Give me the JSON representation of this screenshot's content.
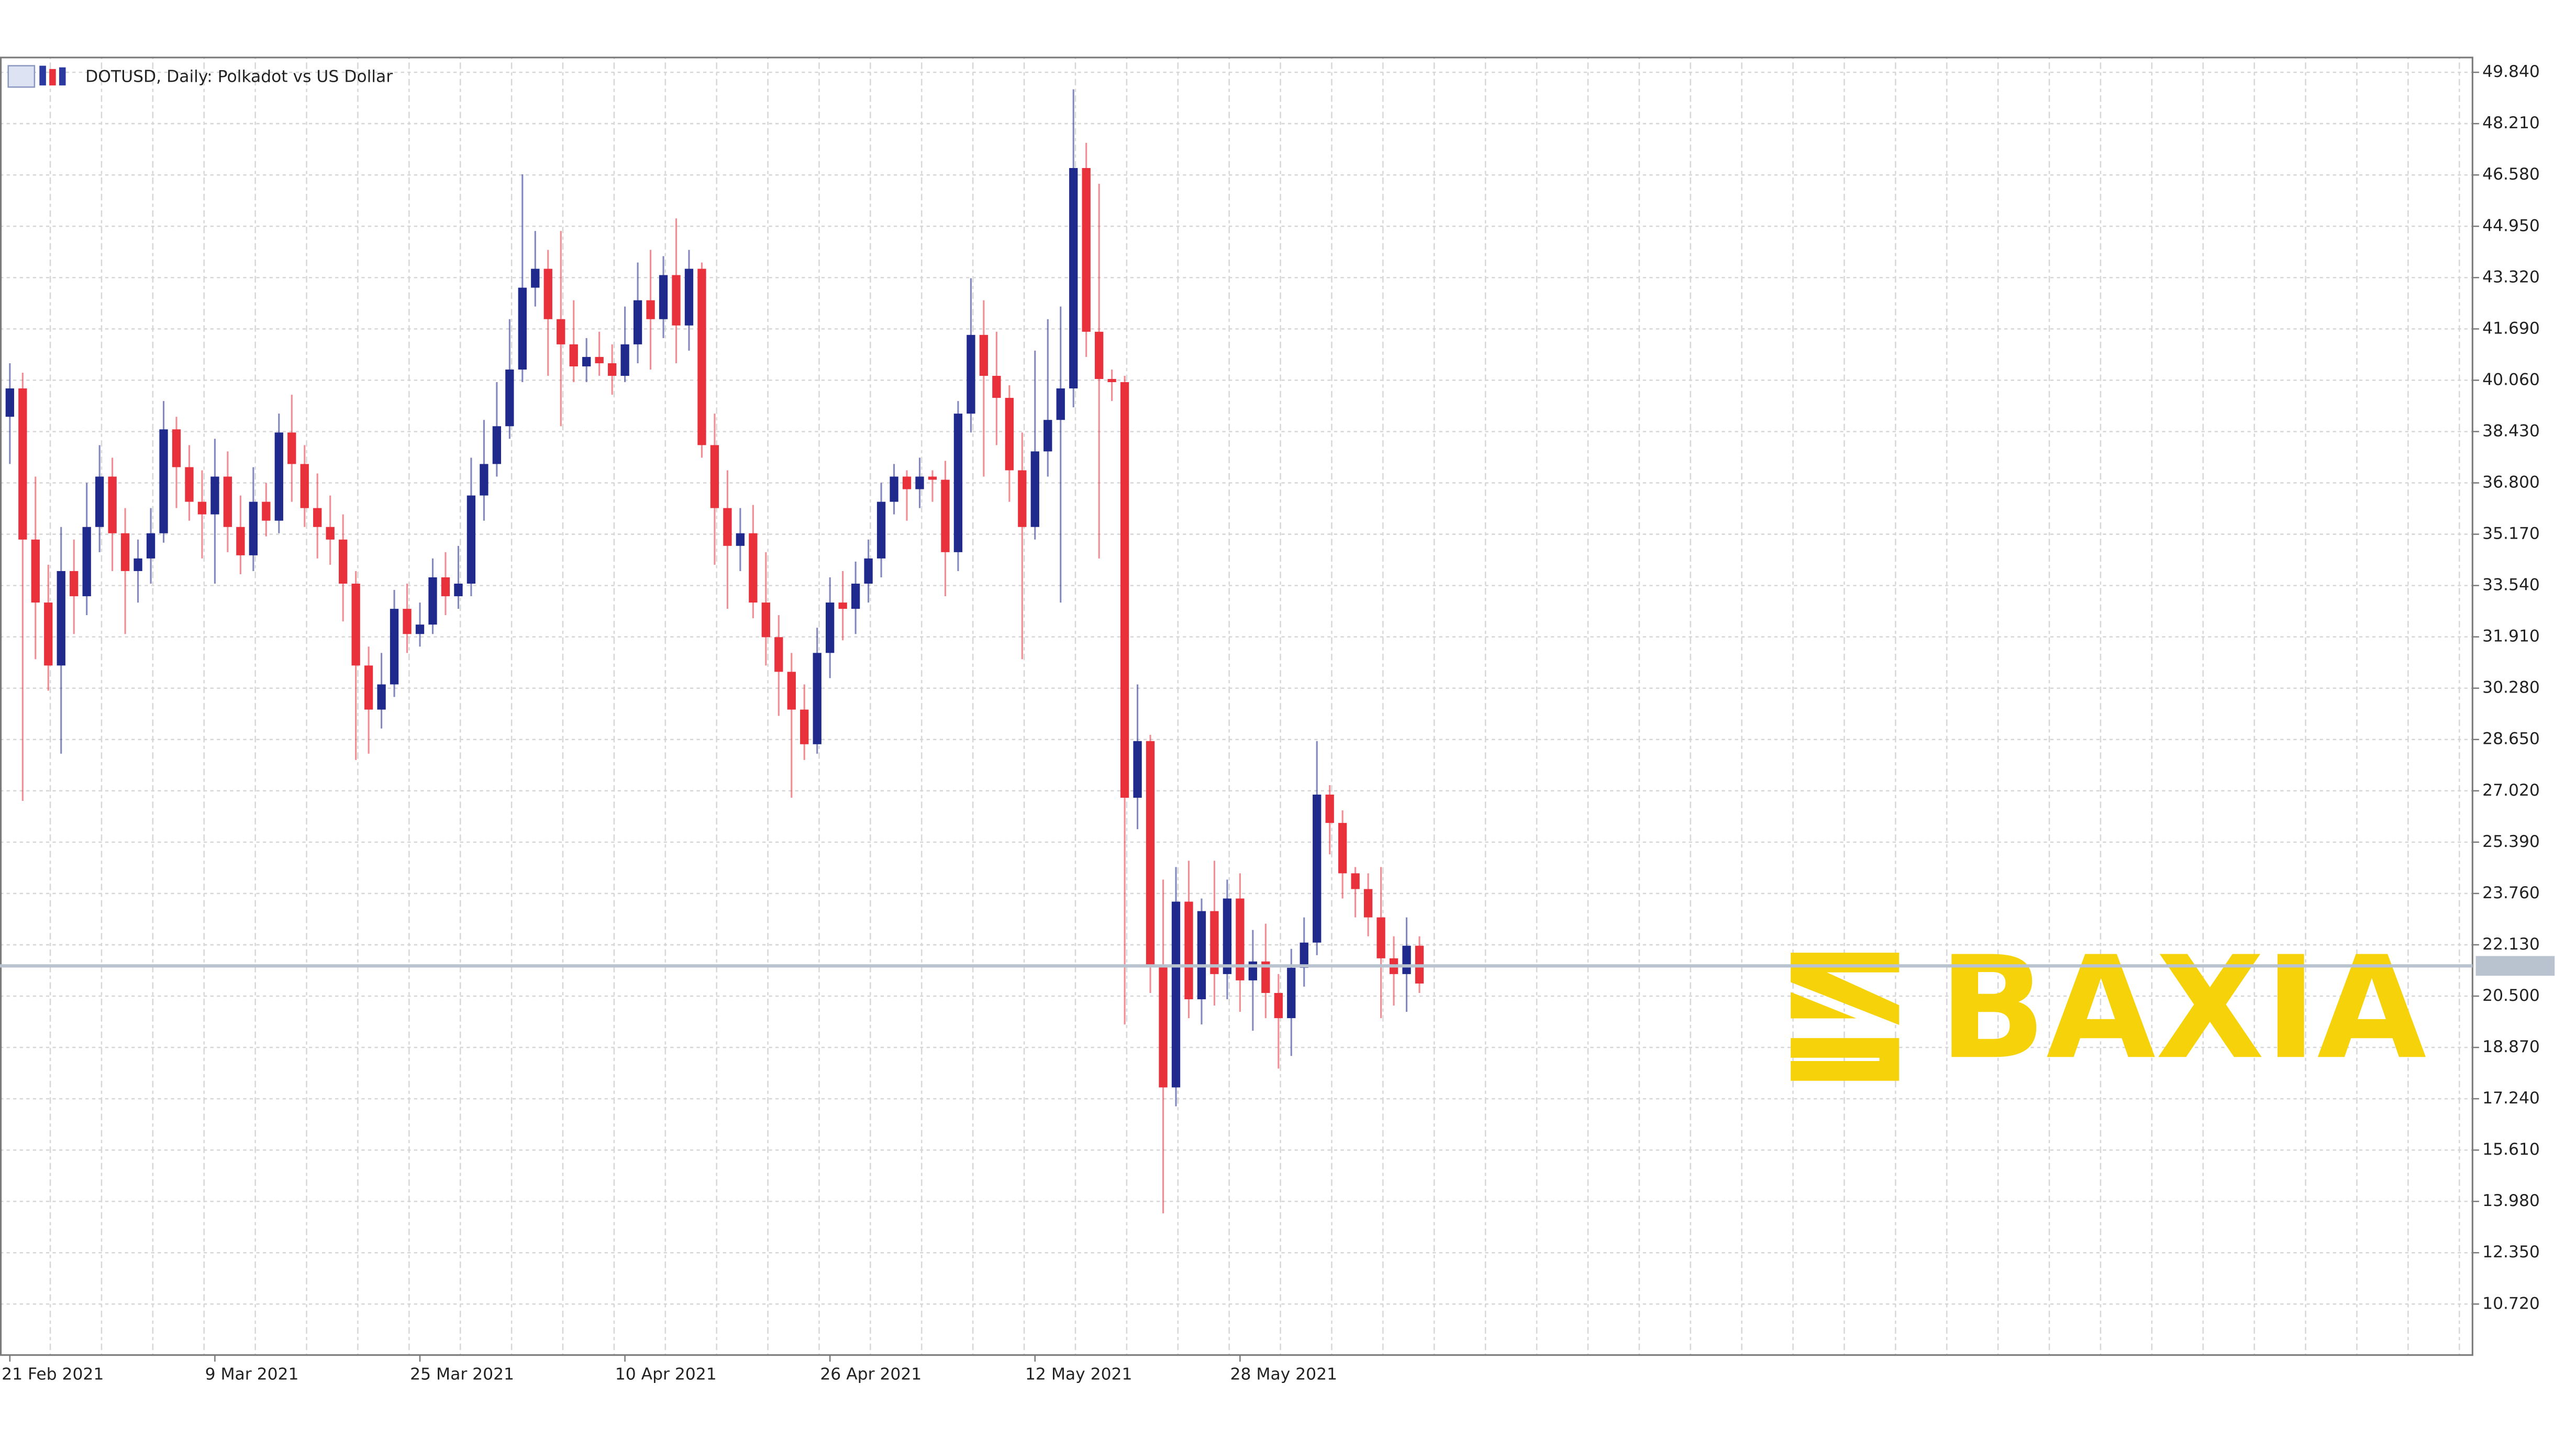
{
  "chart_data": {
    "type": "candlestick",
    "title": "DOTUSD, Daily:  Polkadot vs US Dollar",
    "watermark": "BAXIA",
    "categories": [
      "21 Feb 2021",
      null,
      null,
      null,
      null,
      null,
      null,
      null,
      null,
      null,
      null,
      null,
      null,
      null,
      null,
      null,
      "9 Mar 2021",
      null,
      null,
      null,
      null,
      null,
      null,
      null,
      null,
      null,
      null,
      null,
      null,
      null,
      null,
      null,
      "25 Mar 2021",
      null,
      null,
      null,
      null,
      null,
      null,
      null,
      null,
      null,
      null,
      null,
      null,
      null,
      null,
      null,
      "10 Apr 2021",
      null,
      null,
      null,
      null,
      null,
      null,
      null,
      null,
      null,
      null,
      null,
      null,
      null,
      null,
      null,
      "26 Apr 2021",
      null,
      null,
      null,
      null,
      null,
      null,
      null,
      null,
      null,
      null,
      null,
      null,
      null,
      null,
      null,
      "12 May 2021",
      null,
      null,
      null,
      null,
      null,
      null,
      null,
      null,
      null,
      null,
      null,
      null,
      null,
      null,
      null,
      "28 May 2021",
      null,
      null,
      null,
      null,
      null,
      null,
      null,
      null,
      null,
      null,
      null,
      null,
      null,
      null
    ],
    "open": [
      38.9,
      39.8,
      35.0,
      33.0,
      31.0,
      34.0,
      33.2,
      35.4,
      37.0,
      35.2,
      34.0,
      34.4,
      35.2,
      38.5,
      37.3,
      36.2,
      35.8,
      37.0,
      35.4,
      34.5,
      36.2,
      35.6,
      38.4,
      37.4,
      36.0,
      35.4,
      35.0,
      33.6,
      31.0,
      29.6,
      30.4,
      32.8,
      32.0,
      32.3,
      33.8,
      33.2,
      33.6,
      36.4,
      37.4,
      38.6,
      40.4,
      43.0,
      43.6,
      42.0,
      41.2,
      40.5,
      40.8,
      40.6,
      40.2,
      41.2,
      42.6,
      42.0,
      43.4,
      41.8,
      43.6,
      38.0,
      36.0,
      34.8,
      35.2,
      33.0,
      31.9,
      30.8,
      29.6,
      28.5,
      31.4,
      33.0,
      32.8,
      33.6,
      34.4,
      36.2,
      37.0,
      36.6,
      37.0,
      36.9,
      34.6,
      39.0,
      41.5,
      40.2,
      39.5,
      37.2,
      35.4,
      37.8,
      38.8,
      39.8,
      46.8,
      41.6,
      40.1,
      40.0,
      26.8,
      28.6,
      21.5,
      17.6,
      23.5,
      20.4,
      23.2,
      21.2,
      23.6,
      21.0,
      21.6,
      20.6,
      19.8,
      21.4,
      22.2,
      26.9,
      26.0,
      24.4,
      23.9,
      23.0,
      21.7,
      21.2,
      22.1
    ],
    "high": [
      40.6,
      40.3,
      37.0,
      34.2,
      35.4,
      35.0,
      36.8,
      38.0,
      37.6,
      36.0,
      35.0,
      36.0,
      39.4,
      38.9,
      38.0,
      37.2,
      38.2,
      37.8,
      36.4,
      37.3,
      36.8,
      39.0,
      39.6,
      38.0,
      37.1,
      36.4,
      35.8,
      34.0,
      31.6,
      31.4,
      33.4,
      33.6,
      33.0,
      34.4,
      34.6,
      34.8,
      37.6,
      38.8,
      40.0,
      42.0,
      46.6,
      44.8,
      44.2,
      44.8,
      42.6,
      41.4,
      41.6,
      41.2,
      42.4,
      43.8,
      44.2,
      44.0,
      45.2,
      44.2,
      43.8,
      39.0,
      37.2,
      36.0,
      36.1,
      34.6,
      32.6,
      31.4,
      30.4,
      32.2,
      33.8,
      34.0,
      34.3,
      35.0,
      36.8,
      37.4,
      37.2,
      37.6,
      37.2,
      37.5,
      39.4,
      43.3,
      42.6,
      41.6,
      39.9,
      38.4,
      41.0,
      42.0,
      42.4,
      49.3,
      47.6,
      46.3,
      40.4,
      40.2,
      30.4,
      28.8,
      24.2,
      24.6,
      24.8,
      23.6,
      24.8,
      24.2,
      24.4,
      22.6,
      22.8,
      21.2,
      22.0,
      23.0,
      28.6,
      27.2,
      26.4,
      24.6,
      24.4,
      24.6,
      22.4,
      23.0,
      22.4
    ],
    "low": [
      37.4,
      26.7,
      31.2,
      30.2,
      28.2,
      32.0,
      32.6,
      34.6,
      34.0,
      32.0,
      33.0,
      33.6,
      34.9,
      36.0,
      35.6,
      34.4,
      33.6,
      34.6,
      33.9,
      34.0,
      35.1,
      35.2,
      36.2,
      35.4,
      34.4,
      34.2,
      32.4,
      28.0,
      28.2,
      29.0,
      30.0,
      31.4,
      31.6,
      32.0,
      32.6,
      32.8,
      33.2,
      35.6,
      37.0,
      38.2,
      40.0,
      42.4,
      40.2,
      38.6,
      40.0,
      40.0,
      40.2,
      39.6,
      40.0,
      40.6,
      40.4,
      41.4,
      40.6,
      41.0,
      37.6,
      34.2,
      32.8,
      34.0,
      32.5,
      31.0,
      29.4,
      26.8,
      28.0,
      28.2,
      30.6,
      31.8,
      32.0,
      33.0,
      33.8,
      35.8,
      35.6,
      36.0,
      36.2,
      33.2,
      34.0,
      38.4,
      37.0,
      38.0,
      36.2,
      31.2,
      35.0,
      37.0,
      33.0,
      39.2,
      40.8,
      34.4,
      39.4,
      19.6,
      25.8,
      20.6,
      13.6,
      17.0,
      19.8,
      19.6,
      20.2,
      20.4,
      20.0,
      19.4,
      19.8,
      18.2,
      18.6,
      20.8,
      21.8,
      25.0,
      23.6,
      23.0,
      22.4,
      19.8,
      20.2,
      20.0,
      20.6
    ],
    "close": [
      39.8,
      35.0,
      33.0,
      31.0,
      34.0,
      33.2,
      35.4,
      37.0,
      35.2,
      34.0,
      34.4,
      35.2,
      38.5,
      37.3,
      36.2,
      35.8,
      37.0,
      35.4,
      34.5,
      36.2,
      35.6,
      38.4,
      37.4,
      36.0,
      35.4,
      35.0,
      33.6,
      31.0,
      29.6,
      30.4,
      32.8,
      32.0,
      32.3,
      33.8,
      33.2,
      33.6,
      36.4,
      37.4,
      38.6,
      40.4,
      43.0,
      43.6,
      42.0,
      41.2,
      40.5,
      40.8,
      40.6,
      40.2,
      41.2,
      42.6,
      42.0,
      43.4,
      41.8,
      43.6,
      38.0,
      36.0,
      34.8,
      35.2,
      33.0,
      31.9,
      30.8,
      29.6,
      28.5,
      31.4,
      33.0,
      32.8,
      33.6,
      34.4,
      36.2,
      37.0,
      36.6,
      37.0,
      36.9,
      34.6,
      39.0,
      41.5,
      40.2,
      39.5,
      37.2,
      35.4,
      37.8,
      38.8,
      39.8,
      46.8,
      41.6,
      40.1,
      40.0,
      26.8,
      28.6,
      21.5,
      17.6,
      23.5,
      20.4,
      23.2,
      21.2,
      23.6,
      21.0,
      21.6,
      20.6,
      19.8,
      21.4,
      22.2,
      26.9,
      26.0,
      24.4,
      23.9,
      23.0,
      21.7,
      21.2,
      22.1,
      20.9
    ],
    "up_color": "#1f2a8c",
    "down_color": "#e8313b",
    "price_line": 21.46,
    "ylim": [
      9.1,
      50.31
    ],
    "yticks": [
      {
        "value": 49.84,
        "label": "49.840"
      },
      {
        "value": 48.21,
        "label": "48.210"
      },
      {
        "value": 46.58,
        "label": "46.580"
      },
      {
        "value": 44.95,
        "label": "44.950"
      },
      {
        "value": 43.32,
        "label": "43.320"
      },
      {
        "value": 41.69,
        "label": "41.690"
      },
      {
        "value": 40.06,
        "label": "40.060"
      },
      {
        "value": 38.43,
        "label": "38.430"
      },
      {
        "value": 36.8,
        "label": "36.800"
      },
      {
        "value": 35.17,
        "label": "35.170"
      },
      {
        "value": 33.54,
        "label": "33.540"
      },
      {
        "value": 31.91,
        "label": "31.910"
      },
      {
        "value": 30.28,
        "label": "30.280"
      },
      {
        "value": 28.65,
        "label": "28.650"
      },
      {
        "value": 27.02,
        "label": "27.020"
      },
      {
        "value": 25.39,
        "label": "25.390"
      },
      {
        "value": 23.76,
        "label": "23.760"
      },
      {
        "value": 22.13,
        "label": "22.130"
      },
      {
        "value": 20.5,
        "label": "20.500"
      },
      {
        "value": 18.87,
        "label": "18.870"
      },
      {
        "value": 17.24,
        "label": "17.240"
      },
      {
        "value": 15.61,
        "label": "15.610"
      },
      {
        "value": 13.98,
        "label": "13.980"
      },
      {
        "value": 12.35,
        "label": "12.350"
      },
      {
        "value": 10.72,
        "label": "10.720"
      }
    ],
    "grid": true
  }
}
